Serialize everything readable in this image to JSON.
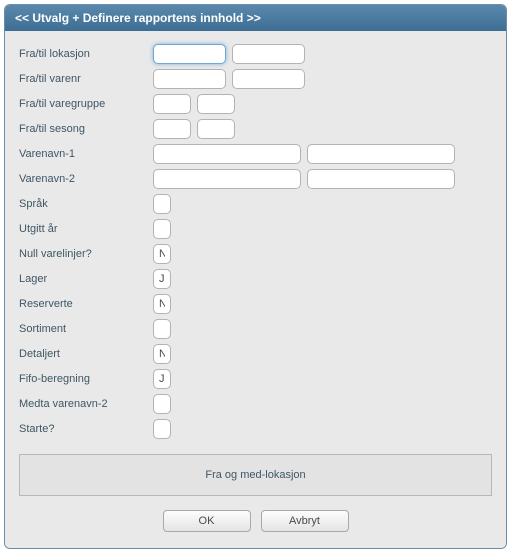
{
  "title": "<< Utvalg + Definere rapportens innhold >>",
  "rows": {
    "lokasjon": {
      "label": "Fra/til lokasjon",
      "v1": "",
      "v2": ""
    },
    "varenr": {
      "label": "Fra/til varenr",
      "v1": "",
      "v2": ""
    },
    "varegruppe": {
      "label": "Fra/til varegruppe",
      "v1": "",
      "v2": ""
    },
    "sesong": {
      "label": "Fra/til sesong",
      "v1": "",
      "v2": ""
    },
    "varenavn1": {
      "label": "Varenavn-1",
      "v1": "",
      "v2": ""
    },
    "varenavn2": {
      "label": "Varenavn-2",
      "v1": "",
      "v2": ""
    },
    "sprak": {
      "label": "Språk",
      "v": ""
    },
    "utgittar": {
      "label": "Utgitt år",
      "v": ""
    },
    "nulllinjer": {
      "label": "Null varelinjer?",
      "v": "N"
    },
    "lager": {
      "label": "Lager",
      "v": "J"
    },
    "reserverte": {
      "label": "Reserverte",
      "v": "N"
    },
    "sortiment": {
      "label": "Sortiment",
      "v": ""
    },
    "detaljert": {
      "label": "Detaljert",
      "v": "N"
    },
    "fifo": {
      "label": "Fifo-beregning",
      "v": "J"
    },
    "medta": {
      "label": "Medta varenavn-2",
      "v": ""
    },
    "starte": {
      "label": "Starte?",
      "v": ""
    }
  },
  "footer": "Fra og med-lokasjon",
  "buttons": {
    "ok": "OK",
    "cancel": "Avbryt"
  }
}
